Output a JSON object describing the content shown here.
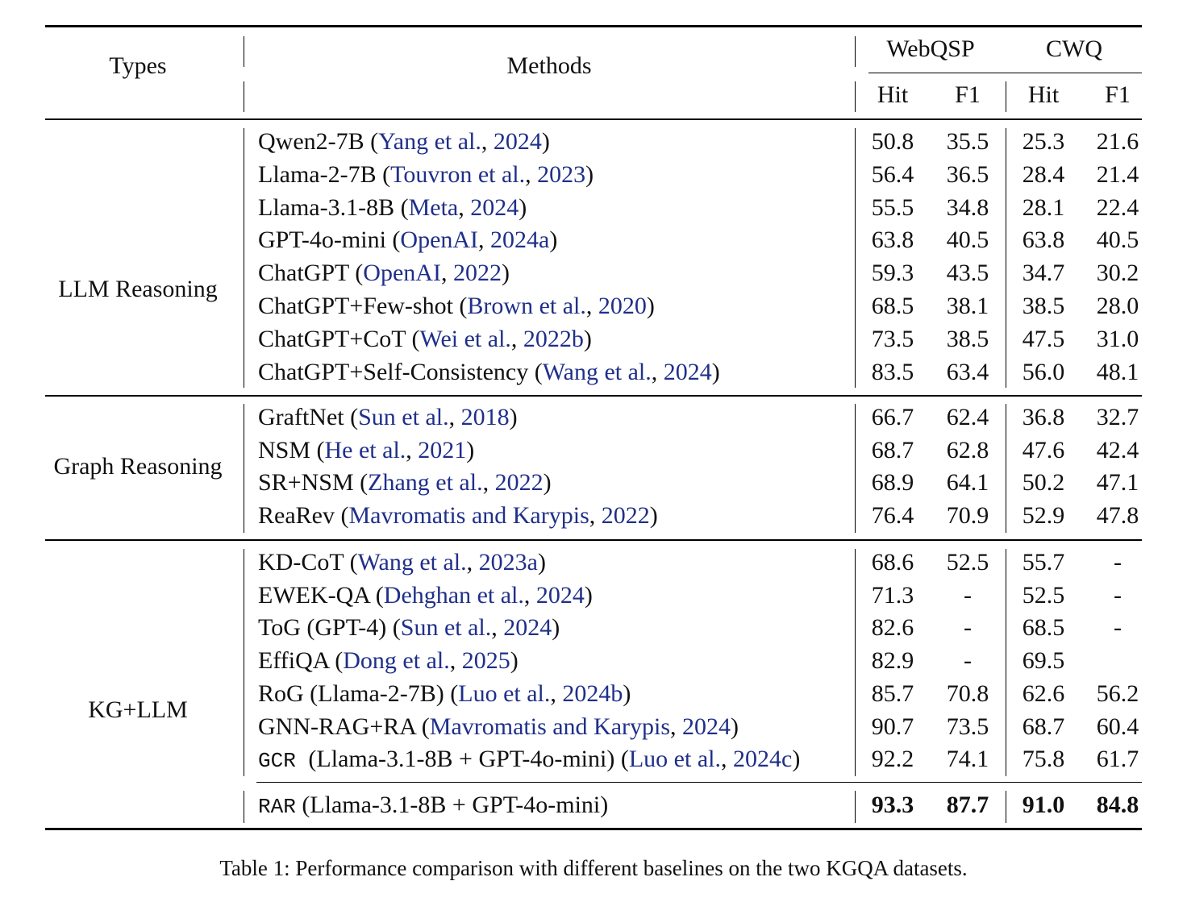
{
  "header": {
    "types": "Types",
    "methods": "Methods",
    "webqsp": "WebQSP",
    "cwq": "CWQ",
    "hit": "Hit",
    "f1": "F1"
  },
  "groups": [
    {
      "type": "LLM Reasoning",
      "rows": [
        {
          "model": "Qwen2-7B",
          "cite_author": "Yang et al.",
          "cite_year": "2024",
          "values": [
            "50.8",
            "35.5",
            "25.3",
            "21.6"
          ]
        },
        {
          "model": "Llama-2-7B",
          "cite_author": "Touvron et al.",
          "cite_year": "2023",
          "values": [
            "56.4",
            "36.5",
            "28.4",
            "21.4"
          ]
        },
        {
          "model": "Llama-3.1-8B",
          "cite_author": "Meta",
          "cite_year": "2024",
          "values": [
            "55.5",
            "34.8",
            "28.1",
            "22.4"
          ]
        },
        {
          "model": "GPT-4o-mini",
          "cite_author": "OpenAI",
          "cite_year": "2024a",
          "values": [
            "63.8",
            "40.5",
            "63.8",
            "40.5"
          ]
        },
        {
          "model": "ChatGPT",
          "cite_author": "OpenAI",
          "cite_year": "2022",
          "values": [
            "59.3",
            "43.5",
            "34.7",
            "30.2"
          ]
        },
        {
          "model": "ChatGPT+Few-shot",
          "cite_author": "Brown et al.",
          "cite_year": "2020",
          "values": [
            "68.5",
            "38.1",
            "38.5",
            "28.0"
          ]
        },
        {
          "model": "ChatGPT+CoT",
          "cite_author": "Wei et al.",
          "cite_year": "2022b",
          "values": [
            "73.5",
            "38.5",
            "47.5",
            "31.0"
          ]
        },
        {
          "model": "ChatGPT+Self-Consistency",
          "cite_author": "Wang et al.",
          "cite_year": "2024",
          "values": [
            "83.5",
            "63.4",
            "56.0",
            "48.1"
          ]
        }
      ]
    },
    {
      "type": "Graph Reasoning",
      "rows": [
        {
          "model": "GraftNet",
          "cite_author": "Sun et al.",
          "cite_year": "2018",
          "values": [
            "66.7",
            "62.4",
            "36.8",
            "32.7"
          ]
        },
        {
          "model": "NSM",
          "cite_author": "He et al.",
          "cite_year": "2021",
          "values": [
            "68.7",
            "62.8",
            "47.6",
            "42.4"
          ]
        },
        {
          "model": "SR+NSM",
          "cite_author": "Zhang et al.",
          "cite_year": "2022",
          "values": [
            "68.9",
            "64.1",
            "50.2",
            "47.1"
          ]
        },
        {
          "model": "ReaRev",
          "cite_author": "Mavromatis and Karypis",
          "cite_year": "2022",
          "values": [
            "76.4",
            "70.9",
            "52.9",
            "47.8"
          ]
        }
      ]
    },
    {
      "type": "KG+LLM",
      "rows": [
        {
          "model": "KD-CoT",
          "cite_author": "Wang et al.",
          "cite_year": "2023a",
          "values": [
            "68.6",
            "52.5",
            "55.7",
            "-"
          ]
        },
        {
          "model": "EWEK-QA",
          "cite_author": "Dehghan et al.",
          "cite_year": "2024",
          "values": [
            "71.3",
            "-",
            "52.5",
            "-"
          ]
        },
        {
          "model": "ToG (GPT-4)",
          "cite_author": "Sun et al.",
          "cite_year": "2024",
          "values": [
            "82.6",
            "-",
            "68.5",
            "-"
          ]
        },
        {
          "model": "EffiQA",
          "cite_author": "Dong et al.",
          "cite_year": "2025",
          "values": [
            "82.9",
            "-",
            "69.5",
            ""
          ]
        },
        {
          "model": "RoG (Llama-2-7B)",
          "cite_author": "Luo et al.",
          "cite_year": "2024b",
          "values": [
            "85.7",
            "70.8",
            "62.6",
            "56.2"
          ]
        },
        {
          "model": "GNN-RAG+RA",
          "cite_author": "Mavromatis and Karypis",
          "cite_year": "2024",
          "values": [
            "90.7",
            "73.5",
            "68.7",
            "60.4"
          ]
        },
        {
          "model_mono": "GCR",
          "model": "(Llama-3.1-8B + GPT-4o-mini)",
          "cite_author": "Luo et al.",
          "cite_year": "2024c",
          "values": [
            "92.2",
            "74.1",
            "75.8",
            "61.7"
          ]
        }
      ]
    }
  ],
  "ours": {
    "model_mono": "RAR",
    "model": "(Llama-3.1-8B + GPT-4o-mini)",
    "values": [
      "93.3",
      "87.7",
      "91.0",
      "84.8"
    ]
  },
  "caption": "Table 1: Performance comparison with different baselines on the two KGQA datasets."
}
